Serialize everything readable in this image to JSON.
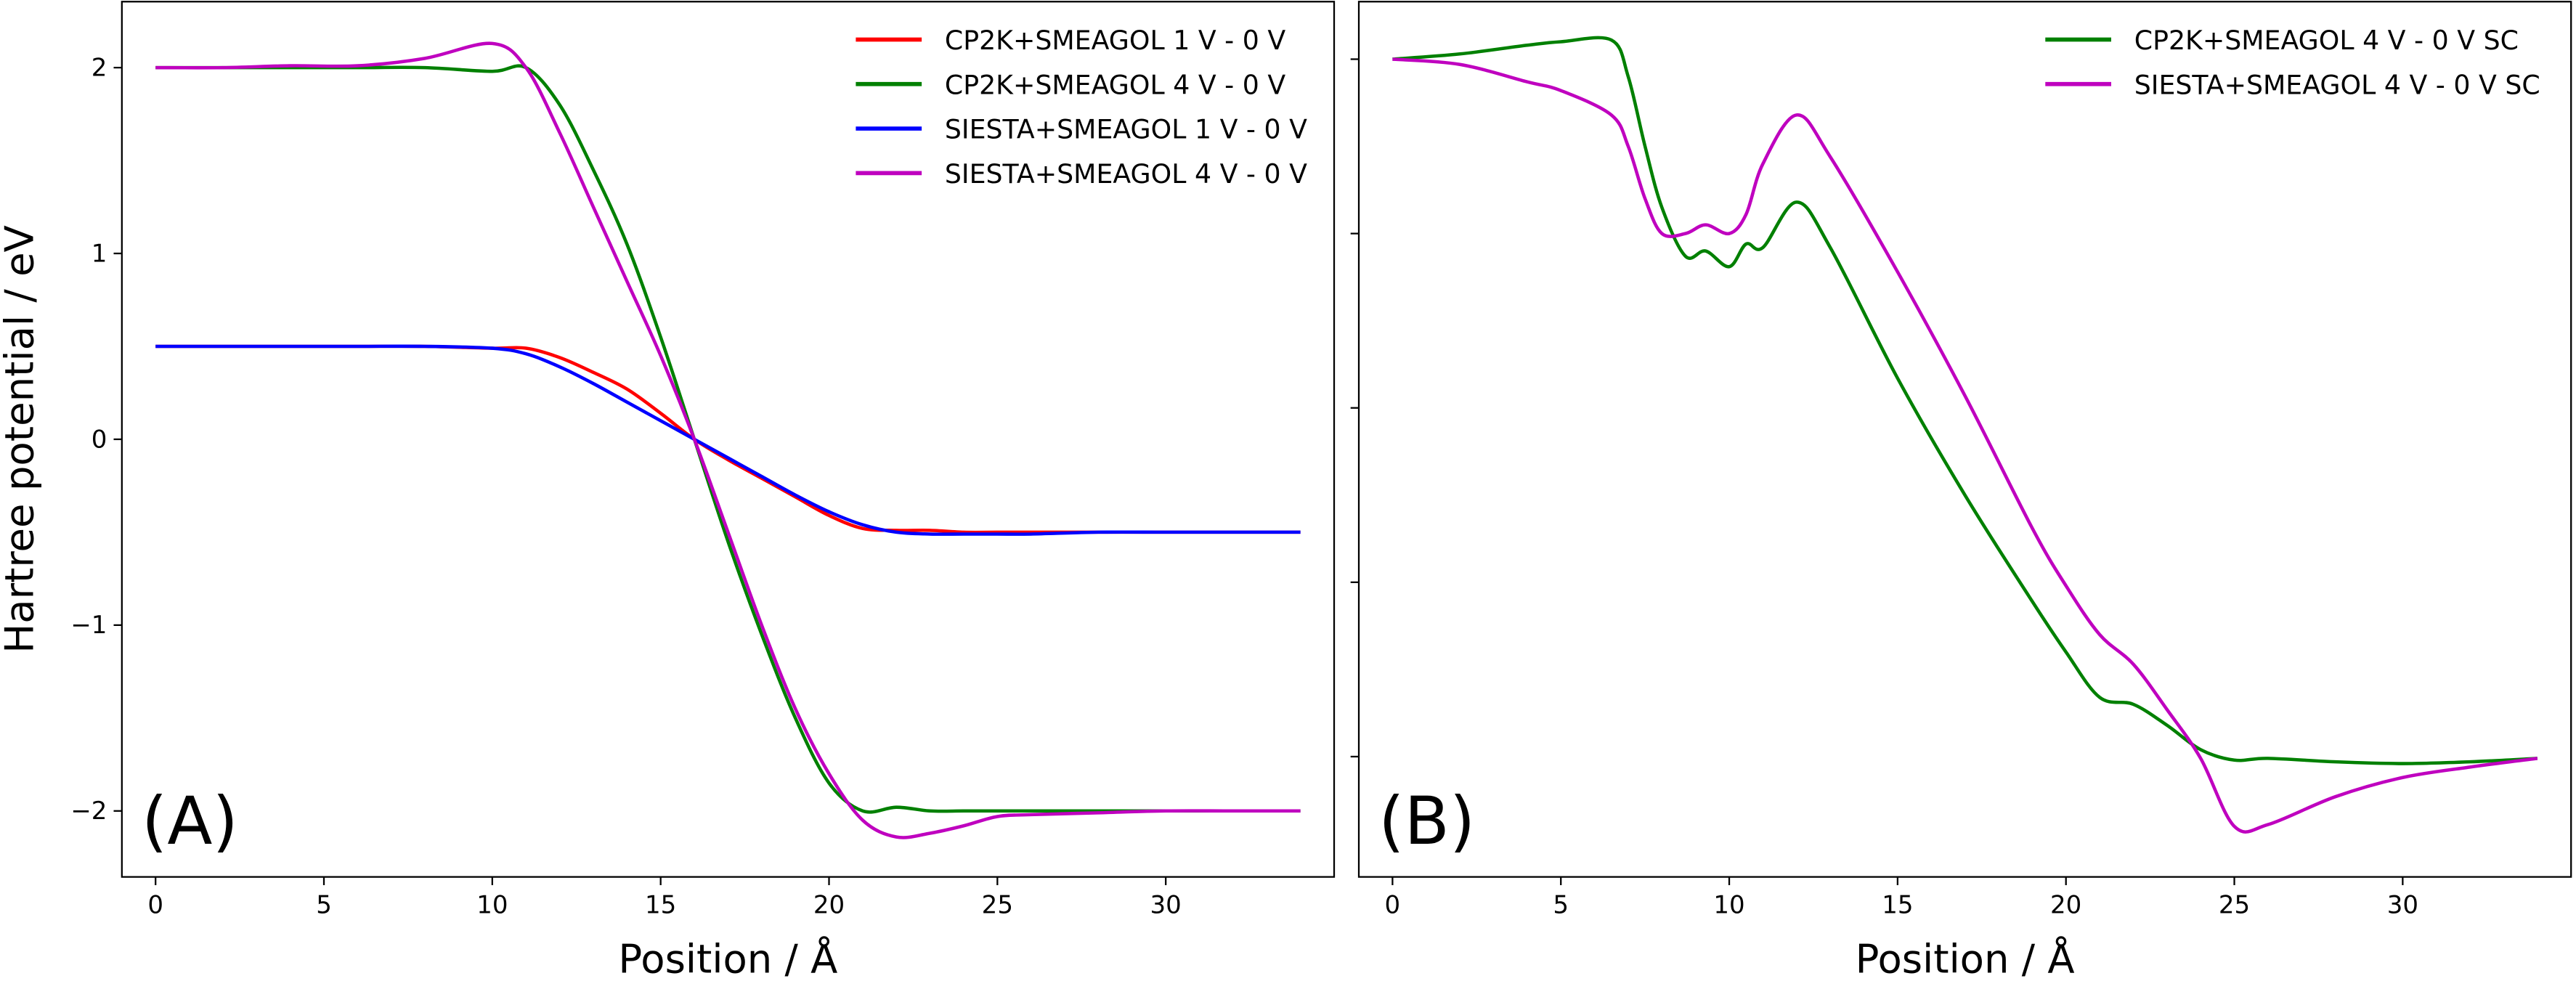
{
  "chart_data": [
    {
      "type": "line",
      "xlabel": "Position / Å",
      "ylabel": "Hartree potential / eV",
      "annotation": "(A)",
      "x": [
        0,
        2,
        4,
        6,
        8,
        10,
        11,
        12,
        13,
        14,
        15,
        16,
        17,
        18,
        19,
        20,
        21,
        22,
        23,
        24,
        25,
        26,
        28,
        30,
        32,
        34
      ],
      "series": [
        {
          "name": "CP2K+SMEAGOL 1 V - 0 V",
          "color": "#ff0000",
          "values": [
            0.5,
            0.5,
            0.5,
            0.5,
            0.5,
            0.49,
            0.49,
            0.44,
            0.36,
            0.27,
            0.14,
            0.0,
            -0.11,
            -0.21,
            -0.31,
            -0.41,
            -0.48,
            -0.49,
            -0.49,
            -0.5,
            -0.5,
            -0.5,
            -0.5,
            -0.5,
            -0.5,
            -0.5
          ]
        },
        {
          "name": "CP2K+SMEAGOL 4 V - 0 V",
          "color": "#008000",
          "values": [
            2,
            2,
            2,
            2,
            2.0,
            1.98,
            2.0,
            1.8,
            1.45,
            1.05,
            0.55,
            0.0,
            -0.55,
            -1.05,
            -1.5,
            -1.85,
            -2.0,
            -1.98,
            -2.0,
            -2.0,
            -2.0,
            -2.0,
            -2.0,
            -2.0,
            -2.0,
            -2.0
          ]
        },
        {
          "name": "SIESTA+SMEAGOL 1 V - 0 V",
          "color": "#0000ff",
          "values": [
            0.5,
            0.5,
            0.5,
            0.5,
            0.5,
            0.49,
            0.46,
            0.39,
            0.3,
            0.2,
            0.1,
            0.0,
            -0.1,
            -0.2,
            -0.3,
            -0.39,
            -0.46,
            -0.5,
            -0.51,
            -0.51,
            -0.51,
            -0.51,
            -0.5,
            -0.5,
            -0.5,
            -0.5
          ]
        },
        {
          "name": "SIESTA+SMEAGOL 4 V - 0 V",
          "color": "#bf00bf",
          "values": [
            2,
            2,
            2.01,
            2.01,
            2.05,
            2.13,
            2.0,
            1.65,
            1.25,
            0.85,
            0.45,
            0.0,
            -0.5,
            -1.0,
            -1.45,
            -1.8,
            -2.05,
            -2.14,
            -2.12,
            -2.08,
            -2.03,
            -2.02,
            -2.01,
            -2.0,
            -2.0,
            -2.0
          ]
        }
      ],
      "xlim": [
        -1,
        35
      ],
      "ylim": [
        -2.355,
        2.355
      ],
      "xticks": [
        0,
        5,
        10,
        15,
        20,
        25,
        30
      ],
      "yticks": [
        {
          "value": -2,
          "label": "−2"
        },
        {
          "value": -1,
          "label": "−1"
        },
        0,
        1,
        2
      ],
      "legend": "upper right"
    },
    {
      "type": "line",
      "xlabel": "Position / Å",
      "annotation": "(B)",
      "x": [
        0,
        2,
        4,
        5,
        6.5,
        7,
        7.5,
        8,
        8.7,
        9.3,
        10,
        10.5,
        11,
        12,
        13,
        15,
        17,
        19,
        20,
        21,
        22,
        23,
        24,
        25,
        26,
        28,
        30,
        32,
        34
      ],
      "series": [
        {
          "name": "CP2K+SMEAGOL 4 V - 0 V SC",
          "color": "#008000",
          "values": [
            2.0,
            2.03,
            2.08,
            2.1,
            2.11,
            1.9,
            1.5,
            1.15,
            0.87,
            0.9,
            0.81,
            0.94,
            0.92,
            1.18,
            0.92,
            0.17,
            -0.5,
            -1.11,
            -1.4,
            -1.66,
            -1.7,
            -1.82,
            -1.96,
            -2.02,
            -2.01,
            -2.03,
            -2.04,
            -2.03,
            -2.01
          ]
        },
        {
          "name": "SIESTA+SMEAGOL 4 V - 0 V SC",
          "color": "#bf00bf",
          "values": [
            2.0,
            1.97,
            1.87,
            1.82,
            1.68,
            1.5,
            1.2,
            1.0,
            1.0,
            1.05,
            1.0,
            1.11,
            1.4,
            1.68,
            1.44,
            0.78,
            0.07,
            -0.69,
            -1.02,
            -1.3,
            -1.47,
            -1.73,
            -2.01,
            -2.4,
            -2.39,
            -2.23,
            -2.12,
            -2.06,
            -2.01
          ]
        }
      ],
      "xlim": [
        -1,
        35
      ],
      "ylim": [
        -2.69,
        2.33
      ],
      "xticks": [
        0,
        5,
        10,
        15,
        20,
        25,
        30
      ],
      "yticks": [
        -2,
        -1,
        0,
        1,
        2
      ],
      "ytick_labels": false,
      "legend": "upper right"
    }
  ]
}
